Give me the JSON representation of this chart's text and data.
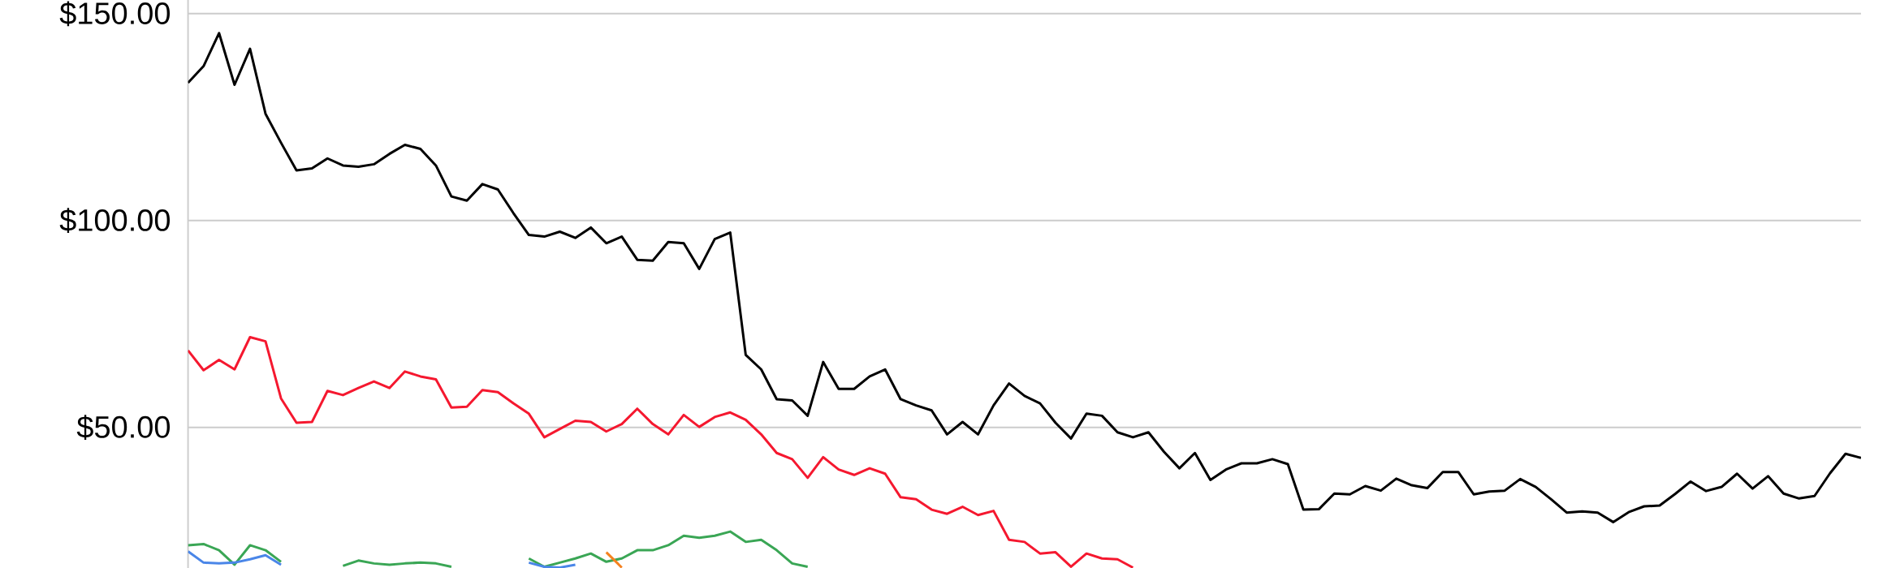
{
  "chart_data": {
    "type": "line",
    "ylim": [
      16,
      153.3
    ],
    "categories": [
      null,
      null,
      null,
      null,
      null,
      null,
      null,
      null,
      null,
      null,
      null,
      null,
      null,
      null,
      null,
      null,
      null,
      null,
      null,
      null,
      null,
      null,
      null,
      null,
      null,
      null,
      null,
      null,
      null,
      null,
      null,
      null,
      null,
      null,
      null,
      null,
      null,
      null,
      null,
      null,
      null,
      null,
      null,
      null,
      null,
      null,
      null,
      null,
      null,
      null,
      null,
      null,
      null,
      null,
      null,
      null,
      null,
      null,
      null,
      null,
      null,
      null,
      null,
      null,
      null,
      null,
      null,
      null,
      null,
      null,
      null,
      null,
      null,
      null,
      null,
      null,
      null,
      null,
      null,
      null,
      null,
      null,
      null,
      null,
      null,
      null,
      null,
      null,
      null,
      null,
      null,
      null,
      null,
      null,
      null,
      null,
      null,
      null,
      null,
      null,
      null,
      null,
      null,
      null,
      null,
      null,
      null,
      null,
      null
    ],
    "yticks": [
      {
        "value": 50,
        "label": "$50.00"
      },
      {
        "value": 100,
        "label": "$100.00"
      },
      {
        "value": 150,
        "label": "$150.00"
      }
    ],
    "grid": "y",
    "tick_labels": "y",
    "series": [
      {
        "color": "#000000",
        "values": [
          133.3,
          137.3,
          145.3,
          132.8,
          141.5,
          125.8,
          118.8,
          112.1,
          112.6,
          115.0,
          113.3,
          113.0,
          113.6,
          116.1,
          118.3,
          117.3,
          113.3,
          105.8,
          104.8,
          108.8,
          107.5,
          101.8,
          96.5,
          96.1,
          97.3,
          95.8,
          98.3,
          94.5,
          96.1,
          90.5,
          90.3,
          94.8,
          94.5,
          88.3,
          95.5,
          97.1,
          67.5,
          64.0,
          56.8,
          56.5,
          52.8,
          65.8,
          59.3,
          59.3,
          62.3,
          64.0,
          56.8,
          55.3,
          54.1,
          48.3,
          51.3,
          48.3,
          55.3,
          60.6,
          57.6,
          55.8,
          51.1,
          47.3,
          53.3,
          52.8,
          48.8,
          47.6,
          48.8,
          44.1,
          40.1,
          43.8,
          37.3,
          39.8,
          41.3,
          41.3,
          42.3,
          41.1,
          30.1,
          30.2,
          34.0,
          33.8,
          35.8,
          34.7,
          37.6,
          36.0,
          35.3,
          39.2,
          39.2,
          33.8,
          34.5,
          34.7,
          37.5,
          35.6,
          32.6,
          29.4,
          29.7,
          29.4,
          27.1,
          29.5,
          30.9,
          31.1,
          33.9,
          36.9,
          34.6,
          35.6,
          38.8,
          35.2,
          38.2,
          34.0,
          32.8,
          33.4,
          38.9,
          43.6,
          42.6
        ]
      },
      {
        "color": "#f5182f",
        "values": [
          68.6,
          63.8,
          66.3,
          64.0,
          71.8,
          70.8,
          57.0,
          51.1,
          51.3,
          58.8,
          57.8,
          59.5,
          61.1,
          59.5,
          63.5,
          62.3,
          61.6,
          54.8,
          55.0,
          59.0,
          58.5,
          55.8,
          53.3,
          47.6,
          49.6,
          51.6,
          51.3,
          49.0,
          50.8,
          54.5,
          50.8,
          48.3,
          53.0,
          50.1,
          52.5,
          53.6,
          51.8,
          48.3,
          43.8,
          42.3,
          37.8,
          42.8,
          39.8,
          38.5,
          40.1,
          38.8,
          33.1,
          32.6,
          30.1,
          29.1,
          30.8,
          28.8,
          29.8,
          22.8,
          22.3,
          19.5,
          19.8,
          16.3,
          19.5,
          18.3,
          18.1,
          16.1,
          null,
          null,
          null,
          null,
          null,
          null,
          null,
          null,
          null,
          null,
          null,
          null,
          null,
          null,
          null,
          null,
          null,
          null,
          null,
          null,
          null,
          null,
          null,
          null,
          null,
          null,
          null,
          null,
          null,
          null,
          null,
          null,
          null,
          null,
          null,
          null,
          null,
          null,
          null,
          null,
          null,
          null,
          null,
          null,
          null,
          null,
          null
        ]
      },
      {
        "color": "#3aa655",
        "values": [
          21.5,
          21.8,
          20.3,
          16.8,
          21.5,
          20.3,
          17.5,
          null,
          null,
          null,
          16.5,
          17.8,
          17.1,
          16.8,
          17.1,
          17.3,
          17.1,
          16.3,
          null,
          null,
          null,
          null,
          18.3,
          16.3,
          17.3,
          18.3,
          19.5,
          17.5,
          18.3,
          20.3,
          20.3,
          21.5,
          23.8,
          23.3,
          23.8,
          24.8,
          22.3,
          22.8,
          20.3,
          17.1,
          16.3,
          null,
          null,
          null,
          null,
          null,
          null,
          null,
          null,
          null,
          null,
          null,
          null,
          null,
          null,
          null,
          null,
          null,
          null,
          null,
          null,
          null,
          null,
          null,
          null,
          null,
          null,
          null,
          null,
          null,
          null,
          null,
          null,
          null,
          null,
          null,
          null,
          null,
          null,
          null,
          null,
          null,
          null,
          null,
          null,
          null,
          null,
          null,
          null,
          null,
          null,
          null,
          null,
          null,
          null,
          null,
          null,
          null,
          null,
          null,
          null,
          null,
          null,
          null,
          null,
          null,
          null,
          null,
          null
        ]
      },
      {
        "color": "#4a86e8",
        "values": [
          20.0,
          17.3,
          17.1,
          17.3,
          18.1,
          19.1,
          16.8,
          null,
          null,
          null,
          null,
          null,
          null,
          null,
          null,
          null,
          null,
          null,
          null,
          null,
          null,
          null,
          17.3,
          16.3,
          16.1,
          16.8,
          null,
          null,
          null,
          null,
          null,
          null,
          null,
          null,
          null,
          null,
          null,
          null,
          null,
          null,
          null,
          null,
          null,
          null,
          null,
          null,
          null,
          null,
          null,
          null,
          null,
          null,
          null,
          null,
          null,
          null,
          null,
          null,
          null,
          null,
          null,
          null,
          null,
          null,
          null,
          null,
          null,
          null,
          null,
          null,
          null,
          null,
          null,
          null,
          null,
          null,
          null,
          null,
          null,
          null,
          null,
          null,
          null,
          null,
          null,
          null,
          null,
          null,
          null,
          null,
          null,
          null,
          null,
          null,
          null,
          null,
          null,
          null,
          null,
          null,
          null,
          null,
          null,
          null,
          null,
          null,
          null,
          null,
          null
        ]
      },
      {
        "color": "#f5821f",
        "values": [
          null,
          null,
          null,
          null,
          null,
          null,
          null,
          null,
          null,
          null,
          null,
          null,
          null,
          null,
          null,
          null,
          null,
          null,
          null,
          null,
          null,
          null,
          null,
          null,
          null,
          null,
          null,
          19.8,
          16.1,
          null,
          null,
          null,
          null,
          null,
          null,
          null,
          null,
          null,
          null,
          null,
          null,
          null,
          null,
          null,
          null,
          null,
          null,
          null,
          null,
          null,
          null,
          null,
          null,
          null,
          null,
          null,
          null,
          null,
          null,
          null,
          null,
          null,
          null,
          null,
          null,
          null,
          null,
          null,
          null,
          null,
          null,
          null,
          null,
          null,
          null,
          null,
          null,
          null,
          null,
          null,
          null,
          null,
          null,
          null,
          null,
          null,
          null,
          null,
          null,
          null,
          null,
          null,
          null,
          null,
          null,
          null,
          null,
          null,
          null,
          null,
          null,
          null,
          null,
          null,
          null,
          null,
          null,
          null,
          null
        ]
      }
    ]
  }
}
